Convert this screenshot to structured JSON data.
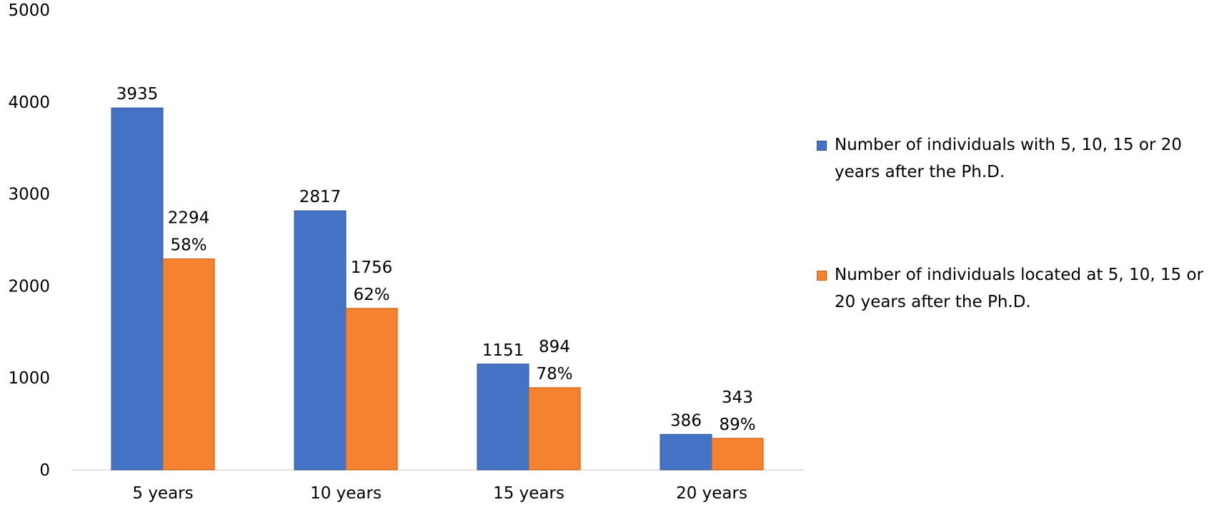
{
  "chart_data": {
    "type": "bar",
    "categories": [
      "5 years",
      "10 years",
      "15 years",
      "20 years"
    ],
    "series": [
      {
        "name": "Number of individuals with 5, 10, 15 or 20 years after the Ph.D.",
        "color": "#4472c4",
        "border": "#2f5597",
        "values": [
          3935,
          2817,
          1151,
          386
        ],
        "labels": [
          [
            "3935"
          ],
          [
            "2817"
          ],
          [
            "1151"
          ],
          [
            "386"
          ]
        ]
      },
      {
        "name": "Number of individuals located at 5, 10, 15 or 20 years after the Ph.D.",
        "color": "#f58231",
        "border": "#c55a11",
        "values": [
          2294,
          1756,
          894,
          343
        ],
        "labels": [
          [
            "2294",
            "58%"
          ],
          [
            "1756",
            "62%"
          ],
          [
            "894",
            "78%"
          ],
          [
            "343",
            "89%"
          ]
        ]
      }
    ],
    "yticks": [
      "0",
      "1000",
      "2000",
      "3000",
      "4000",
      "5000"
    ],
    "ylim": [
      0,
      5000
    ],
    "grid": false,
    "legend_position": "right"
  }
}
